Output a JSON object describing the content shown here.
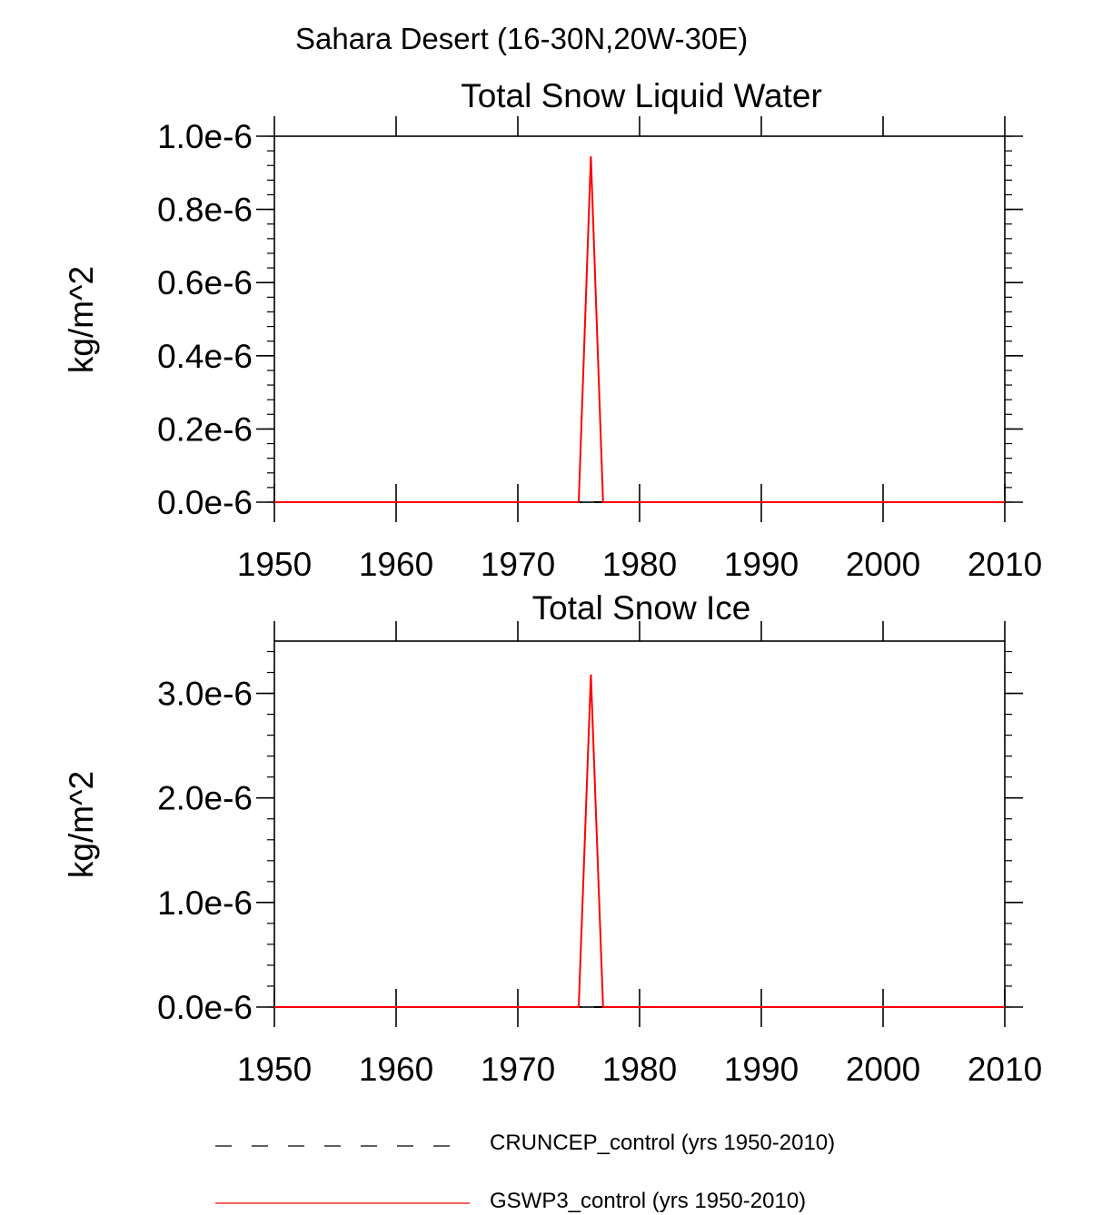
{
  "title": "Sahara Desert (16-30N,20W-30E)",
  "colors": {
    "axis": "#000000",
    "series_cruncep": "#000000",
    "series_gswp3": "#ff0000"
  },
  "chart_data": [
    {
      "type": "line",
      "title": "Total Snow Liquid Water",
      "xlabel": "",
      "ylabel": "kg/m^2",
      "xlim": [
        1950,
        2010
      ],
      "ylim": [
        0,
        1e-06
      ],
      "xticks": [
        1950,
        1960,
        1970,
        1980,
        1990,
        2000,
        2010
      ],
      "xtick_labels": [
        "1950",
        "1960",
        "1970",
        "1980",
        "1990",
        "2000",
        "2010"
      ],
      "yticks": [
        0,
        2e-07,
        4e-07,
        6e-07,
        8e-07,
        1e-06
      ],
      "ytick_labels": [
        "0.0e-6",
        "0.2e-6",
        "0.4e-6",
        "0.6e-6",
        "0.8e-6",
        "1.0e-6"
      ],
      "y_minor_step": 4e-08,
      "series": [
        {
          "name": "CRUNCEP_control (yrs 1950-2010)",
          "style": "dashed",
          "x": [
            1950,
            2010
          ],
          "y": [
            0,
            0
          ]
        },
        {
          "name": "GSWP3_control (yrs 1950-2010)",
          "style": "solid",
          "x": [
            1950,
            1975,
            1976,
            1977,
            2010
          ],
          "y": [
            0,
            0,
            9.45e-07,
            0,
            0
          ]
        }
      ]
    },
    {
      "type": "line",
      "title": "Total Snow Ice",
      "xlabel": "",
      "ylabel": "kg/m^2",
      "xlim": [
        1950,
        2010
      ],
      "ylim": [
        0,
        3.5e-06
      ],
      "xticks": [
        1950,
        1960,
        1970,
        1980,
        1990,
        2000,
        2010
      ],
      "xtick_labels": [
        "1950",
        "1960",
        "1970",
        "1980",
        "1990",
        "2000",
        "2010"
      ],
      "yticks": [
        0,
        1e-06,
        2e-06,
        3e-06
      ],
      "ytick_labels": [
        "0.0e-6",
        "1.0e-6",
        "2.0e-6",
        "3.0e-6"
      ],
      "y_minor_step": 2e-07,
      "series": [
        {
          "name": "CRUNCEP_control (yrs 1950-2010)",
          "style": "dashed",
          "x": [
            1950,
            2010
          ],
          "y": [
            0,
            0
          ]
        },
        {
          "name": "GSWP3_control (yrs 1950-2010)",
          "style": "solid",
          "x": [
            1950,
            1975,
            1976,
            1977,
            2010
          ],
          "y": [
            0,
            0,
            3.18e-06,
            0,
            0
          ]
        }
      ]
    }
  ],
  "legend": [
    {
      "label": "CRUNCEP_control (yrs 1950-2010)",
      "style": "dashed"
    },
    {
      "label": "GSWP3_control (yrs 1950-2010)",
      "style": "solid"
    }
  ]
}
